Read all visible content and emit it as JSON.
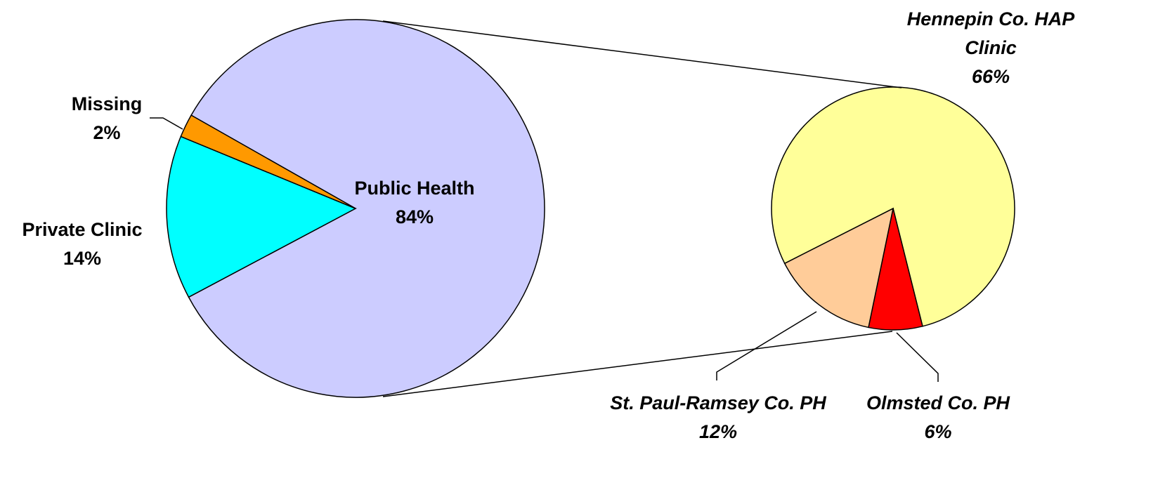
{
  "chart_data": [
    {
      "type": "pie",
      "categories": [
        "Public Health",
        "Private Clinic",
        "Missing"
      ],
      "values": [
        84,
        14,
        2
      ],
      "value_labels": [
        "84%",
        "14%",
        "2%"
      ],
      "colors": [
        "#ccccff",
        "#00ffff",
        "#ff9900"
      ]
    },
    {
      "type": "pie",
      "categories": [
        "Hennepin Co. HAP Clinic",
        "Olmsted Co. PH",
        "St. Paul-Ramsey Co. PH"
      ],
      "values": [
        66,
        6,
        12
      ],
      "value_labels": [
        "66%",
        "6%",
        "12%"
      ],
      "colors": [
        "#ffff99",
        "#ff0000",
        "#ffcc99"
      ]
    }
  ]
}
